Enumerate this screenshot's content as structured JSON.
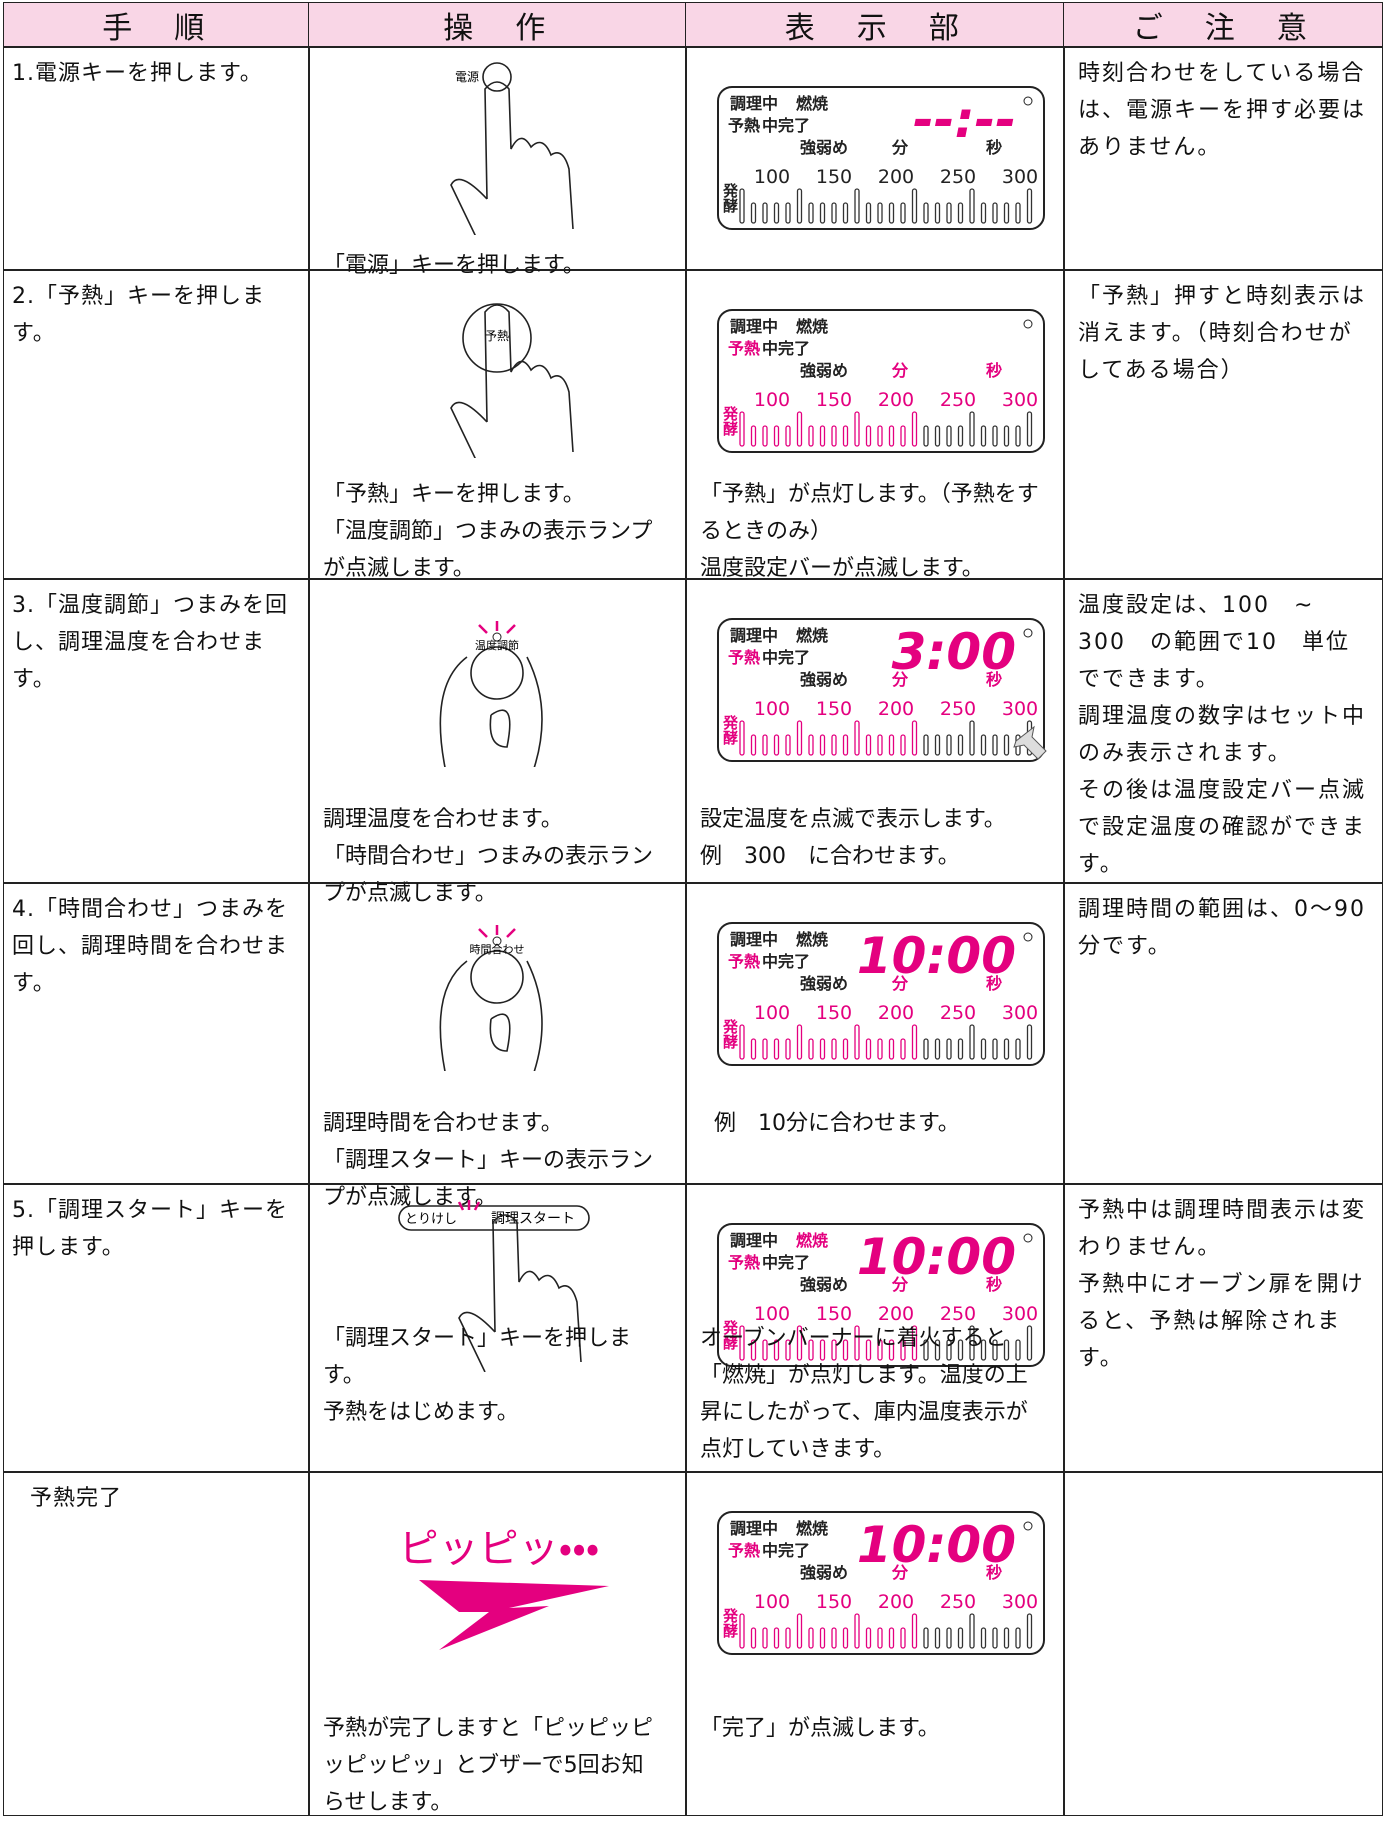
{
  "header": [
    "手　順",
    "操　作",
    "表　示　部",
    "ご　注　意"
  ],
  "lcd": {
    "cooking": "調理中",
    "burn": "燃焼",
    "preheat": "予熱",
    "done": "中完了",
    "strength": "強弱め",
    "min": "分",
    "sec": "秒",
    "ferment": "発酵",
    "scale": [
      "100",
      "150",
      "200",
      "250",
      "300"
    ],
    "lit_color": "#e4007f"
  },
  "rows": [
    {
      "step": "1.電源キーを押します。",
      "key_label": "電源",
      "display_time": "--:--",
      "lcd_lit": false,
      "burn_lit": false,
      "operation": [
        "「電源」キーを押します。"
      ],
      "notes": [
        "時刻合わせをしている場合は、電源キーを押す必要はありません。"
      ]
    },
    {
      "step": "2.「予熱」キーを押します。",
      "key_label": "予熱",
      "lcd_lit": true,
      "burn_lit": false,
      "operation": [
        "「予熱」キーを押します。",
        "「温度調節」つまみの表示ランプが点滅します。"
      ],
      "display": [
        "「予熱」が点灯します。（予熱をするときのみ）",
        "温度設定バーが点滅します。"
      ],
      "notes": [
        "「予熱」押すと時刻表示は消えます。（時刻合わせがしてある場合）"
      ]
    },
    {
      "step": "3.「温度調節」つまみを回し、調理温度を合わせます。",
      "key_label": "温度調節",
      "display_time": "3:00",
      "lcd_lit": true,
      "burn_lit": false,
      "operation": [
        "調理温度を合わせます。",
        "「時間合わせ」つまみの表示ランプが点滅します。"
      ],
      "display": [
        "設定温度を点滅で表示します。",
        "例　300　に合わせます。"
      ],
      "notes": [
        "温度設定は、100　~　300　の範囲で10　単位でできます。",
        "調理温度の数字はセット中のみ表示されます。",
        "その後は温度設定バー点滅で設定温度の確認ができます。"
      ]
    },
    {
      "step": "4.「時間合わせ」つまみを回し、調理時間を合わせます。",
      "key_label": "時間合わせ",
      "display_time": "10:00",
      "lcd_lit": true,
      "burn_lit": false,
      "operation": [
        "調理時間を合わせます。",
        "「調理スタート」キーの表示ランプが点滅します。"
      ],
      "display": [
        "例　10分に合わせます。"
      ],
      "notes": [
        "調理時間の範囲は、0～90分です。"
      ]
    },
    {
      "step": "5.「調理スタート」キーを押します。",
      "key_label": [
        "とりけし",
        "調理スタート"
      ],
      "display_time": "10:00",
      "lcd_lit": true,
      "burn_lit": true,
      "operation": [
        "「調理スタート」キーを押します。",
        "予熱をはじめます。"
      ],
      "display": [
        "オーブンバーナーに着火すると「燃焼」が点灯します。温度の上昇にしたがって、庫内温度表示が点灯していきます。"
      ],
      "notes": [
        "予熱中は調理時間表示は変わりません。",
        "予熱中にオーブン扉を開けると、予熱は解除されます。"
      ]
    },
    {
      "step": "予熱完了",
      "key_label": "ピッピッ・・・",
      "display_time": "10:00",
      "lcd_lit": true,
      "burn_lit": false,
      "operation": [
        "予熱が完了しますと「ピッピッピッピッピッ」とブザーで5回お知らせします。"
      ],
      "display": [
        "「完了」が点滅します。"
      ]
    }
  ]
}
